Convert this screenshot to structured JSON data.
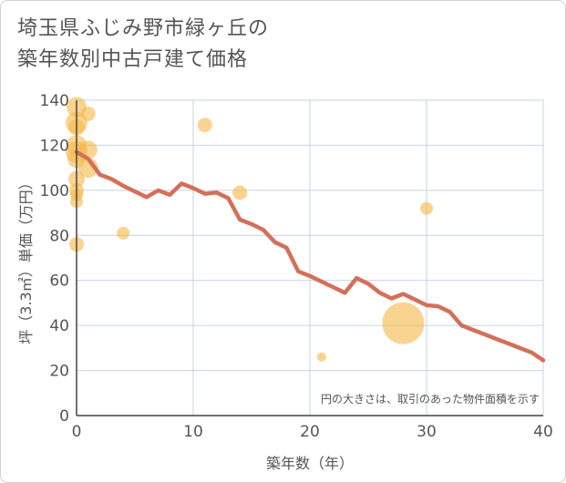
{
  "chart_data": {
    "type": "scatter",
    "title_lines": [
      "埼玉県ふじみ野市緑ヶ丘の",
      "築年数別中古戸建て価格"
    ],
    "xlabel": "築年数（年）",
    "ylabel": "坪（3.3㎡）単価（万円）",
    "xlim": [
      0,
      40
    ],
    "ylim": [
      0,
      140
    ],
    "x_ticks": [
      0,
      10,
      20,
      30,
      40
    ],
    "y_ticks": [
      0,
      20,
      40,
      60,
      80,
      100,
      120,
      140
    ],
    "note": "円の大きさは、取引のあった物件面積を示す",
    "scatter": [
      {
        "x": 0,
        "y": 137,
        "size": 11
      },
      {
        "x": 0,
        "y": 130,
        "size": 12
      },
      {
        "x": 0,
        "y": 128,
        "size": 9
      },
      {
        "x": 0,
        "y": 120,
        "size": 11
      },
      {
        "x": 0,
        "y": 117,
        "size": 12
      },
      {
        "x": 0,
        "y": 114,
        "size": 10
      },
      {
        "x": 0,
        "y": 105,
        "size": 9
      },
      {
        "x": 0,
        "y": 100,
        "size": 8
      },
      {
        "x": 0,
        "y": 98,
        "size": 7
      },
      {
        "x": 0,
        "y": 95,
        "size": 7
      },
      {
        "x": 0,
        "y": 76,
        "size": 8
      },
      {
        "x": 1,
        "y": 134,
        "size": 8
      },
      {
        "x": 1,
        "y": 118,
        "size": 10
      },
      {
        "x": 1,
        "y": 110,
        "size": 11
      },
      {
        "x": 4,
        "y": 81,
        "size": 7
      },
      {
        "x": 11,
        "y": 129,
        "size": 8
      },
      {
        "x": 14,
        "y": 99,
        "size": 8
      },
      {
        "x": 21,
        "y": 26,
        "size": 5
      },
      {
        "x": 28,
        "y": 41,
        "size": 23
      },
      {
        "x": 30,
        "y": 92,
        "size": 7
      }
    ],
    "trend_line": {
      "x": [
        0,
        1,
        2,
        3,
        4,
        5,
        6,
        7,
        8,
        9,
        10,
        11,
        12,
        13,
        14,
        15,
        16,
        17,
        18,
        19,
        20,
        21,
        22,
        23,
        24,
        25,
        26,
        27,
        28,
        29,
        30,
        31,
        32,
        33,
        34,
        35,
        36,
        37,
        38,
        39,
        40
      ],
      "y": [
        117,
        114,
        107,
        105,
        102,
        99.5,
        97,
        100,
        98,
        103,
        101,
        98.5,
        99,
        96.5,
        87,
        85,
        82.5,
        77,
        74.5,
        64,
        62,
        59.5,
        57,
        54.5,
        61,
        58.5,
        54.5,
        52,
        54,
        51.5,
        49,
        48.5,
        46,
        40,
        38,
        36,
        34,
        32,
        30,
        28,
        24.5
      ]
    },
    "colors": {
      "bubble_fill": "#f5b748",
      "line": "#d4705a",
      "grid": "#c5d3e6",
      "axis": "#444444"
    }
  }
}
